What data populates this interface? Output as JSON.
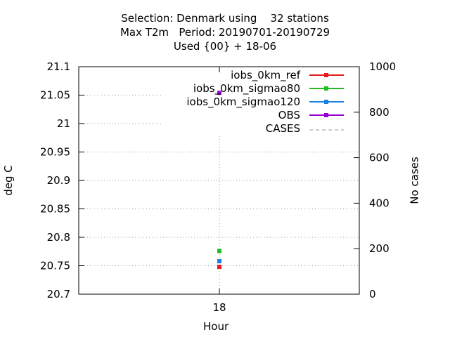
{
  "chart_data": {
    "type": "scatter",
    "title_lines": [
      "Selection: Denmark using    32 stations",
      "Max T2m   Period: 20190701-20190729",
      "Used {00} + 18-06"
    ],
    "xlabel": "Hour",
    "ylabel": "deg C",
    "y2label": "No cases",
    "categories": [
      "18"
    ],
    "ylim": [
      20.7,
      21.1
    ],
    "yticks": [
      "20.7",
      "20.75",
      "20.8",
      "20.85",
      "20.9",
      "20.95",
      "21",
      "21.05",
      "21.1"
    ],
    "y2lim": [
      0,
      1000
    ],
    "y2ticks": [
      "0",
      "200",
      "400",
      "600",
      "800",
      "1000"
    ],
    "grid": true,
    "legend_position": "top-right",
    "series": [
      {
        "name": "iobs_0km_ref",
        "color": "#e41a1c",
        "axis": "y",
        "values": [
          20.748
        ]
      },
      {
        "name": "iobs_0km_sigmao80",
        "color": "#22bb22",
        "axis": "y",
        "values": [
          20.776
        ]
      },
      {
        "name": "iobs_0km_sigmao120",
        "color": "#1a7ee4",
        "axis": "y",
        "values": [
          20.758
        ]
      },
      {
        "name": "OBS",
        "color": "#9400d3",
        "axis": "y",
        "values": [
          21.054
        ]
      },
      {
        "name": "CASES",
        "color": "#999999",
        "axis": "y2",
        "values": [
          32
        ]
      }
    ]
  }
}
